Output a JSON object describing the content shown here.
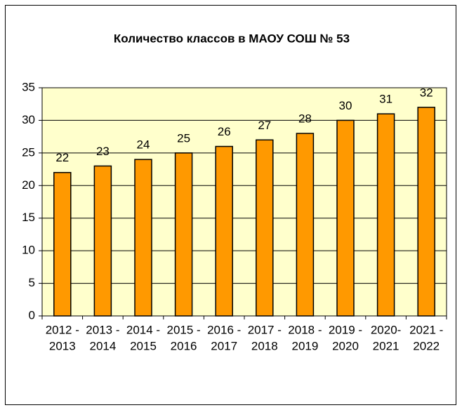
{
  "chart_data": {
    "type": "bar",
    "title": "Количество классов в МАОУ СОШ № 53",
    "categories": [
      [
        "2012 -",
        "2013"
      ],
      [
        "2013 -",
        "2014"
      ],
      [
        "2014 -",
        "2015"
      ],
      [
        "2015 -",
        "2016"
      ],
      [
        "2016 -",
        "2017"
      ],
      [
        "2017 -",
        "2018"
      ],
      [
        "2018 -",
        "2019"
      ],
      [
        "2019 -",
        "2020"
      ],
      [
        "2020-",
        "2021"
      ],
      [
        "2021 -",
        "2022"
      ]
    ],
    "values": [
      22,
      23,
      24,
      25,
      26,
      27,
      28,
      30,
      31,
      32
    ],
    "color": "#ff9900",
    "plot_background": "#ffffcc",
    "ylim": [
      0,
      35
    ],
    "yticks": [
      0,
      5,
      10,
      15,
      20,
      25,
      30,
      35
    ],
    "grid": true
  }
}
